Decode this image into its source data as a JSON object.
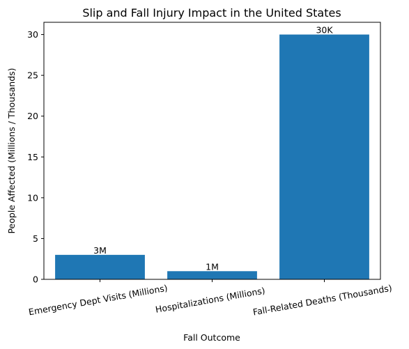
{
  "chart_data": {
    "type": "bar",
    "title": "Slip and Fall Injury Impact in the United States",
    "xlabel": "Fall Outcome",
    "ylabel": "People Affected (Millions / Thousands)",
    "categories": [
      "Emergency Dept Visits (Millions)",
      "Hospitalizations (Millions)",
      "Fall-Related Deaths (Thousands)"
    ],
    "values": [
      3,
      1,
      30
    ],
    "data_labels": [
      "3M",
      "1M",
      "30K"
    ],
    "ylim": [
      0,
      31.5
    ],
    "yticks": [
      0,
      5,
      10,
      15,
      20,
      25,
      30
    ],
    "ytick_labels": [
      "0",
      "5",
      "10",
      "15",
      "20",
      "25",
      "30"
    ],
    "bar_color": "#1f77b4",
    "grid": false,
    "legend": "none"
  }
}
